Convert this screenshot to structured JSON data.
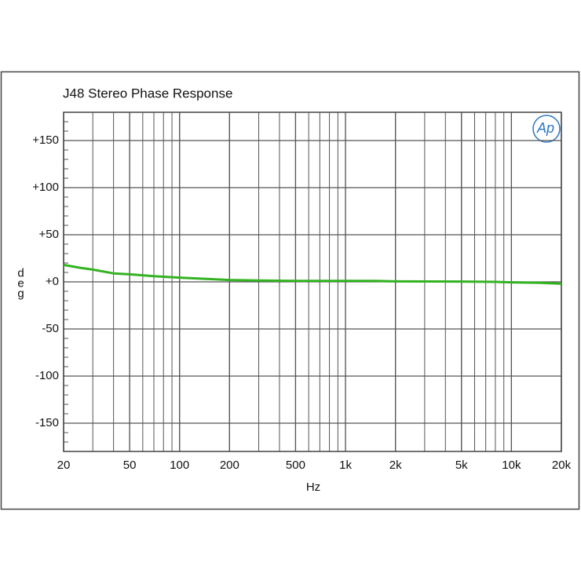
{
  "chart_data": {
    "type": "line",
    "title": "J48 Stereo Phase Response",
    "logo": "Ap",
    "xlabel": "Hz",
    "ylabel": "deg",
    "xscale": "log",
    "grid": true,
    "xlim": [
      20,
      20000
    ],
    "ylim": [
      -180,
      180
    ],
    "xticks": [
      20,
      50,
      100,
      200,
      500,
      {
        "value": 1000,
        "label": "1k"
      },
      {
        "value": 2000,
        "label": "2k"
      },
      {
        "value": 5000,
        "label": "5k"
      },
      {
        "value": 10000,
        "label": "10k"
      },
      {
        "value": 20000,
        "label": "20k"
      }
    ],
    "yticks": [
      {
        "value": 150,
        "label": "+150"
      },
      {
        "value": 100,
        "label": "+100"
      },
      {
        "value": 50,
        "label": "+50"
      },
      {
        "value": 0,
        "label": "+0"
      },
      -50,
      -100,
      -150
    ],
    "x": [
      20,
      25,
      30,
      40,
      50,
      70,
      100,
      150,
      200,
      300,
      500,
      1000,
      1500,
      2000,
      5000,
      8000,
      10000,
      15000,
      20000
    ],
    "series": [
      {
        "name": "Phase",
        "color": "#33b321",
        "values": [
          18,
          15,
          13,
          9,
          8,
          6,
          4.5,
          3,
          2,
          1.5,
          1,
          1,
          1,
          0.5,
          0.3,
          0,
          -0.5,
          -1,
          -2
        ]
      }
    ]
  }
}
